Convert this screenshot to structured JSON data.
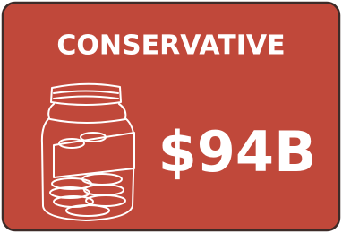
{
  "card": {
    "title": "CONSERVATIVE",
    "value": "$94B"
  }
}
